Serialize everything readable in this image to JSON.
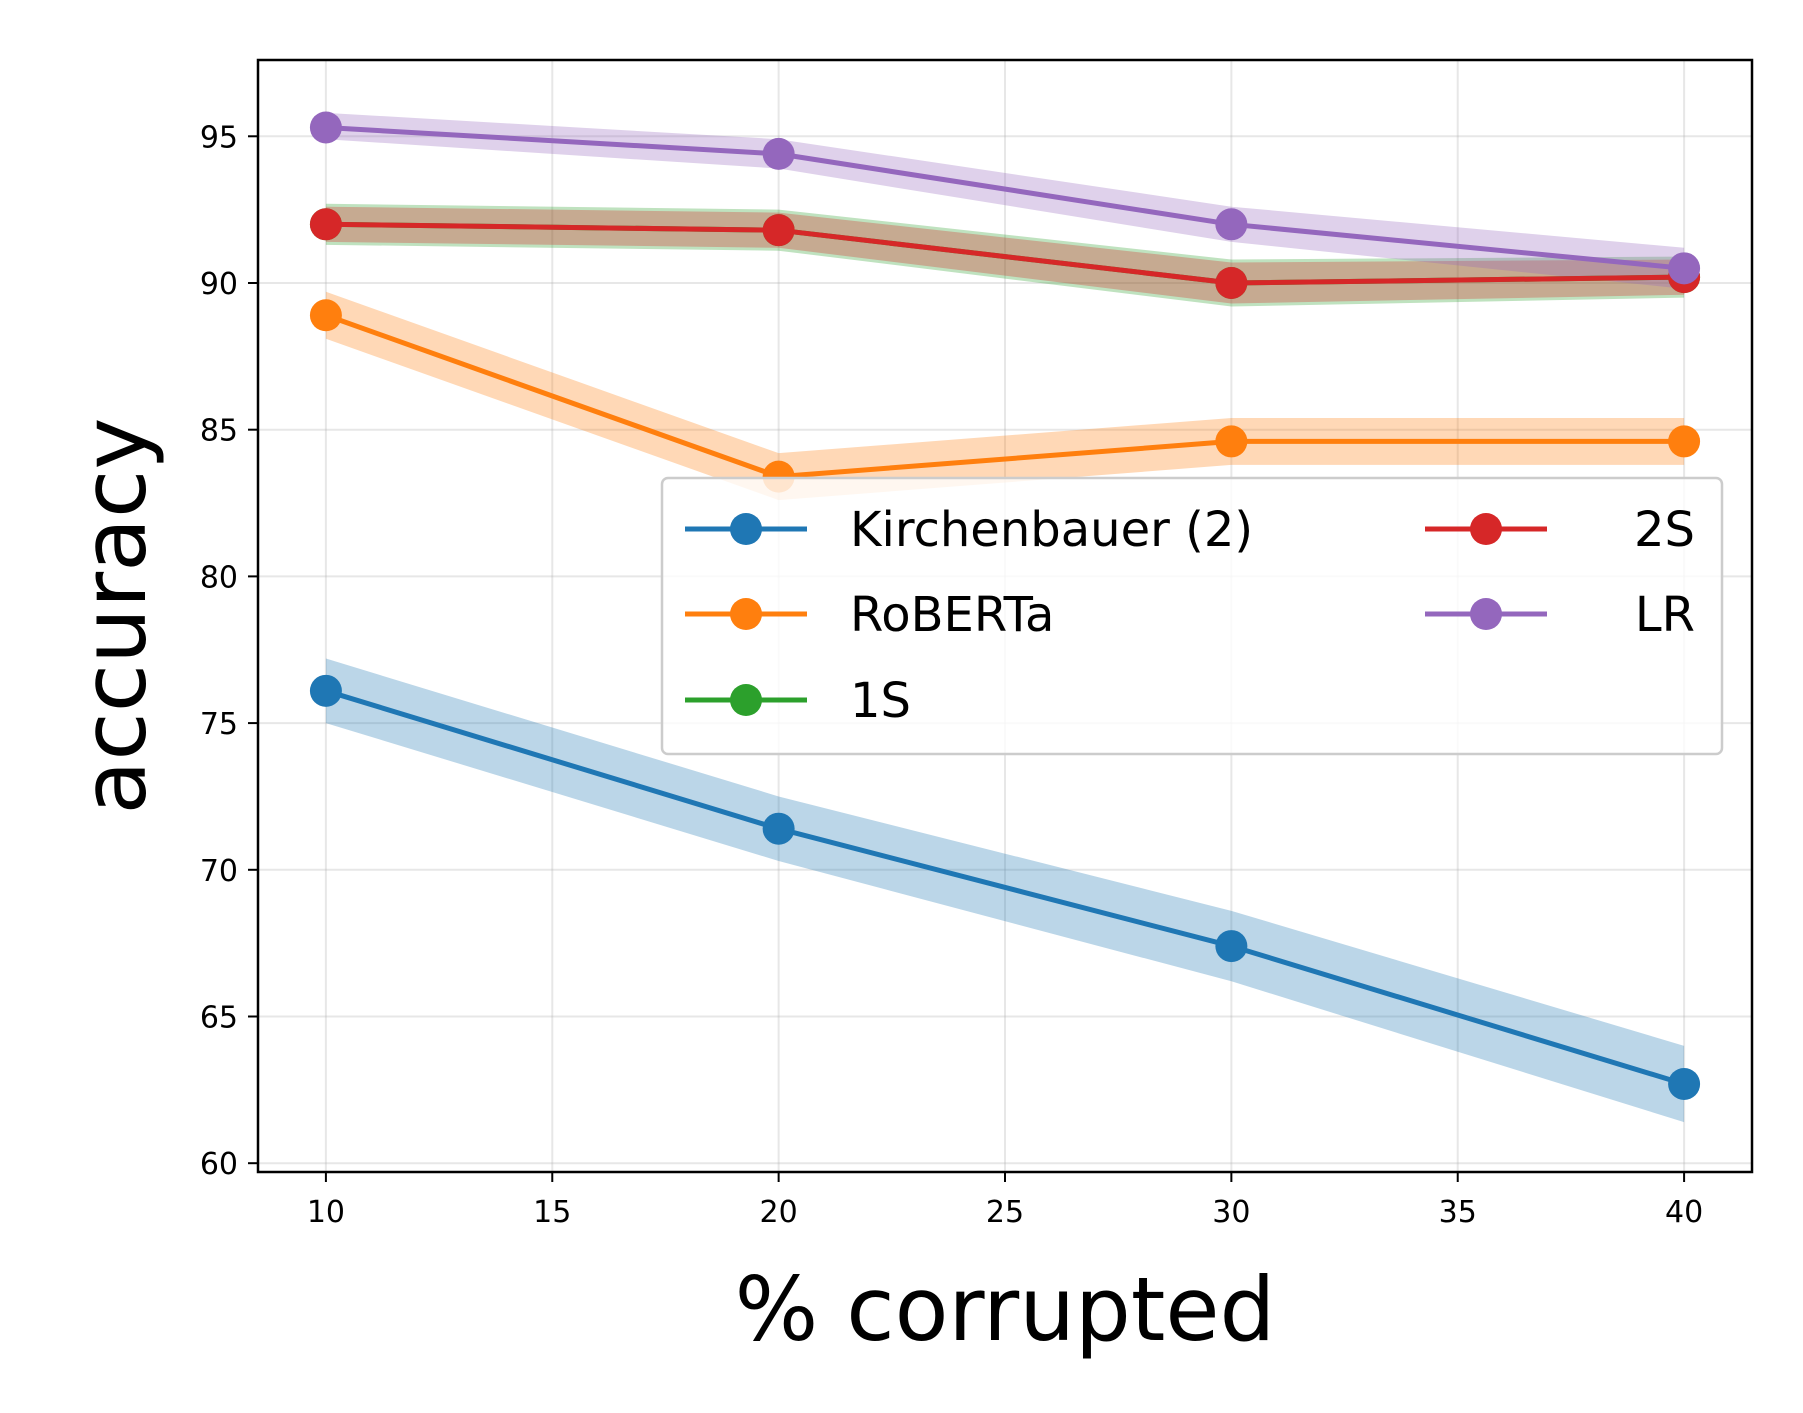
{
  "chart_data": {
    "type": "line",
    "title": "",
    "xlabel": "% corrupted",
    "ylabel": "accuracy",
    "x": [
      10,
      20,
      30,
      40
    ],
    "xlim": [
      8.5,
      41.5
    ],
    "ylim": [
      59.7,
      97.6
    ],
    "xticks": [
      10,
      15,
      20,
      25,
      30,
      35,
      40
    ],
    "yticks": [
      60,
      65,
      70,
      75,
      80,
      85,
      90,
      95
    ],
    "grid": true,
    "legend_position": "center-right",
    "series": [
      {
        "name": "Kirchenbauer (2)",
        "color": "#1f77b4",
        "values": [
          76.1,
          71.4,
          67.4,
          62.7
        ],
        "lower": [
          75.0,
          70.3,
          66.2,
          61.4
        ],
        "upper": [
          77.2,
          72.5,
          68.6,
          64.0
        ]
      },
      {
        "name": "RoBERTa",
        "color": "#ff7f0e",
        "values": [
          88.9,
          83.4,
          84.6,
          84.6
        ],
        "lower": [
          88.1,
          82.6,
          83.8,
          83.8
        ],
        "upper": [
          89.7,
          84.2,
          85.4,
          85.4
        ]
      },
      {
        "name": "1S",
        "color": "#2ca02c",
        "values": [
          92.0,
          91.8,
          90.0,
          90.2
        ],
        "lower": [
          91.3,
          91.1,
          89.2,
          89.5
        ],
        "upper": [
          92.7,
          92.5,
          90.8,
          90.9
        ]
      },
      {
        "name": "2S",
        "color": "#d62728",
        "values": [
          92.0,
          91.8,
          90.0,
          90.2
        ],
        "lower": [
          91.4,
          91.2,
          89.3,
          89.6
        ],
        "upper": [
          92.6,
          92.4,
          90.7,
          90.8
        ]
      },
      {
        "name": "LR",
        "color": "#9467bd",
        "values": [
          95.3,
          94.4,
          92.0,
          90.5
        ],
        "lower": [
          94.9,
          93.9,
          91.4,
          89.8
        ],
        "upper": [
          95.8,
          94.9,
          92.6,
          91.2
        ]
      }
    ]
  }
}
